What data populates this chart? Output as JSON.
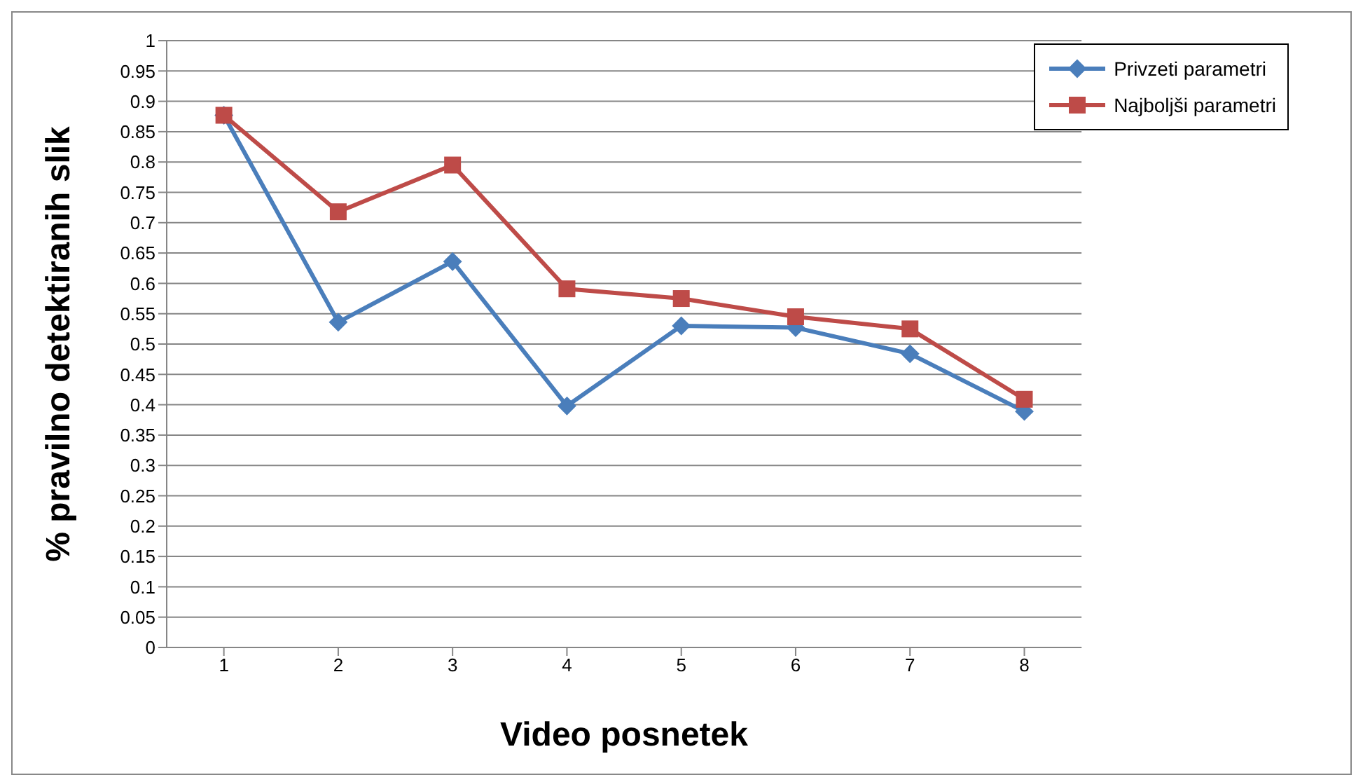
{
  "chart_data": {
    "type": "line",
    "xlabel": "Video posnetek",
    "ylabel": "% pravilno detektiranih slik",
    "categories": [
      "1",
      "2",
      "3",
      "4",
      "5",
      "6",
      "7",
      "8"
    ],
    "series": [
      {
        "name": "Privzeti parametri",
        "color": "#4a7ebb",
        "marker": "diamond",
        "values": [
          0.877,
          0.536,
          0.636,
          0.398,
          0.53,
          0.527,
          0.484,
          0.389
        ]
      },
      {
        "name": "Najboljši parametri",
        "color": "#be4b48",
        "marker": "square",
        "values": [
          0.877,
          0.718,
          0.795,
          0.591,
          0.575,
          0.545,
          0.525,
          0.409
        ]
      }
    ],
    "ylim": [
      0,
      1
    ],
    "yticks": [
      0,
      0.05,
      0.1,
      0.15,
      0.2,
      0.25,
      0.3,
      0.35,
      0.4,
      0.45,
      0.5,
      0.55,
      0.6,
      0.65,
      0.7,
      0.75,
      0.8,
      0.85,
      0.9,
      0.95,
      1
    ],
    "grid": "y",
    "legend": "top right",
    "line_style": "solid"
  }
}
